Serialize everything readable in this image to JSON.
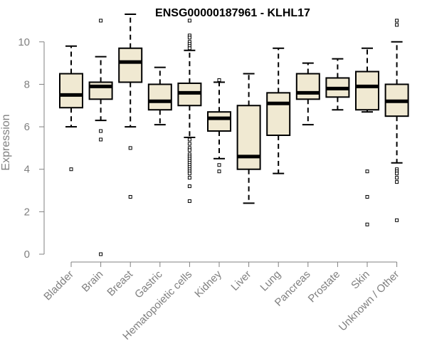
{
  "chart_data": {
    "type": "boxplot",
    "title": "ENSG00000187961 - KLHL17",
    "xlabel": "",
    "ylabel": "Expression",
    "ylim": [
      0,
      11.2
    ],
    "yticks": [
      0,
      2,
      4,
      6,
      8,
      10
    ],
    "grid": false,
    "legend": "none",
    "box_fill": "#f0e9d2",
    "median_color": "#000000",
    "categories": [
      "Bladder",
      "Brain",
      "Breast",
      "Gastric",
      "Hematopoietic cells",
      "Kidney",
      "Liver",
      "Lung",
      "Pancreas",
      "Prostate",
      "Skin",
      "Unknown / Other"
    ],
    "boxes": [
      {
        "min": 6.0,
        "q1": 6.9,
        "median": 7.5,
        "q3": 8.5,
        "max": 9.8,
        "outliers": [
          4.0
        ]
      },
      {
        "min": 6.3,
        "q1": 7.3,
        "median": 7.9,
        "q3": 8.1,
        "max": 9.3,
        "outliers": [
          11.0,
          5.8,
          5.4,
          0.0
        ]
      },
      {
        "min": 6.0,
        "q1": 8.1,
        "median": 9.05,
        "q3": 9.7,
        "max": 11.3,
        "outliers": [
          5.0,
          2.7
        ]
      },
      {
        "min": 6.1,
        "q1": 6.8,
        "median": 7.2,
        "q3": 8.0,
        "max": 8.8,
        "outliers": []
      },
      {
        "min": 5.5,
        "q1": 7.0,
        "median": 7.6,
        "q3": 8.05,
        "max": 9.6,
        "outliers": [
          11.0,
          10.3,
          10.2,
          10.0,
          9.9,
          9.8,
          9.7,
          5.4,
          5.2,
          5.0,
          4.9,
          4.7,
          4.6,
          4.5,
          4.4,
          4.3,
          4.2,
          4.1,
          4.0,
          3.9,
          3.8,
          3.6,
          3.2,
          2.5
        ]
      },
      {
        "min": 4.5,
        "q1": 5.8,
        "median": 6.4,
        "q3": 6.7,
        "max": 8.1,
        "outliers": [
          8.2,
          4.2,
          3.9
        ]
      },
      {
        "min": 2.4,
        "q1": 4.0,
        "median": 4.6,
        "q3": 7.0,
        "max": 8.5,
        "outliers": []
      },
      {
        "min": 3.8,
        "q1": 5.6,
        "median": 7.1,
        "q3": 7.6,
        "max": 9.7,
        "outliers": []
      },
      {
        "min": 6.1,
        "q1": 7.3,
        "median": 7.6,
        "q3": 8.5,
        "max": 9.0,
        "outliers": []
      },
      {
        "min": 6.8,
        "q1": 7.4,
        "median": 7.8,
        "q3": 8.3,
        "max": 9.2,
        "outliers": []
      },
      {
        "min": 6.7,
        "q1": 6.8,
        "median": 7.9,
        "q3": 8.6,
        "max": 9.7,
        "outliers": [
          3.9,
          2.7,
          1.4
        ]
      },
      {
        "min": 4.3,
        "q1": 6.5,
        "median": 7.2,
        "q3": 8.0,
        "max": 10.0,
        "outliers": [
          11.0,
          10.8,
          4.0,
          3.9,
          3.8,
          3.6,
          3.4,
          1.6
        ]
      }
    ]
  }
}
